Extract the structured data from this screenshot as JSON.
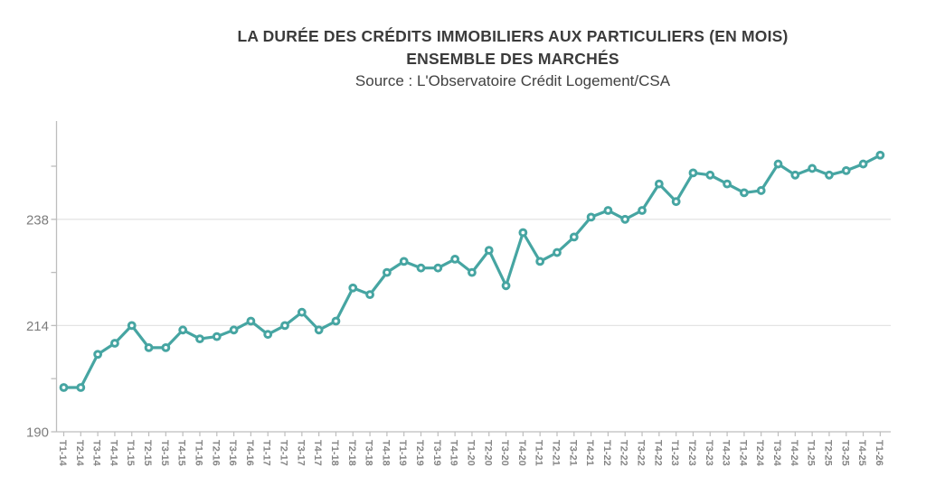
{
  "header": {
    "title_line1": "LA DURÉE DES CRÉDITS IMMOBILIERS AUX PARTICULIERS (EN MOIS)",
    "title_line2": "ENSEMBLE DES MARCHÉS",
    "source": "Source : L'Observatoire Crédit Logement/CSA"
  },
  "chart_data": {
    "type": "line",
    "title": "LA DURÉE DES CRÉDITS IMMOBILIERS AUX PARTICULIERS (EN MOIS)",
    "subtitle": "ENSEMBLE DES MARCHÉS",
    "source": "Source : L'Observatoire Crédit Logement/CSA",
    "xlabel": "",
    "ylabel": "",
    "legend_position": "none",
    "grid": "horizontal-major-only",
    "categories": [
      "T1-14",
      "T2-14",
      "T3-14",
      "T4-14",
      "T1-15",
      "T2-15",
      "T3-15",
      "T4-15",
      "T1-16",
      "T2-16",
      "T3-16",
      "T4-16",
      "T1-17",
      "T2-17",
      "T3-17",
      "T4-17",
      "T1-18",
      "T2-18",
      "T3-18",
      "T4-18",
      "T1-19",
      "T2-19",
      "T3-19",
      "T4-19",
      "T1-20",
      "T2-20",
      "T3-20",
      "T4-20",
      "T1-21",
      "T2-21",
      "T3-21",
      "T4-21",
      "T1-22",
      "T2-22",
      "T3-22",
      "T4-22",
      "T1-23",
      "T2-23",
      "T3-23",
      "T4-23",
      "T1-24",
      "T2-24",
      "T3-24",
      "T4-24",
      "T1-25",
      "T2-25",
      "T3-25",
      "T4-25",
      "T1-26"
    ],
    "values": [
      200,
      200,
      207.5,
      210,
      214,
      209,
      209,
      213,
      211,
      211.5,
      213,
      215,
      212,
      214,
      217,
      213,
      215,
      222.5,
      221,
      226,
      228.5,
      227,
      227,
      229,
      226,
      231,
      223,
      235,
      228.5,
      230.5,
      234,
      238.5,
      240,
      238,
      240,
      246,
      242,
      248.5,
      248,
      246,
      244,
      244.5,
      250.5,
      248,
      249.5,
      248,
      249,
      250.5,
      252.5
    ],
    "ylim": [
      190,
      260
    ],
    "yticks_labeled": [
      190,
      214,
      238
    ],
    "yticks_minor": [
      202,
      226,
      250
    ],
    "gridline_values": [
      214,
      238
    ],
    "marker": "open-circle",
    "line_color": "#46a5a2",
    "axis_color": "#bdbdbd",
    "grid_color": "#e4e4e4",
    "tick_label_color": "#858585"
  }
}
